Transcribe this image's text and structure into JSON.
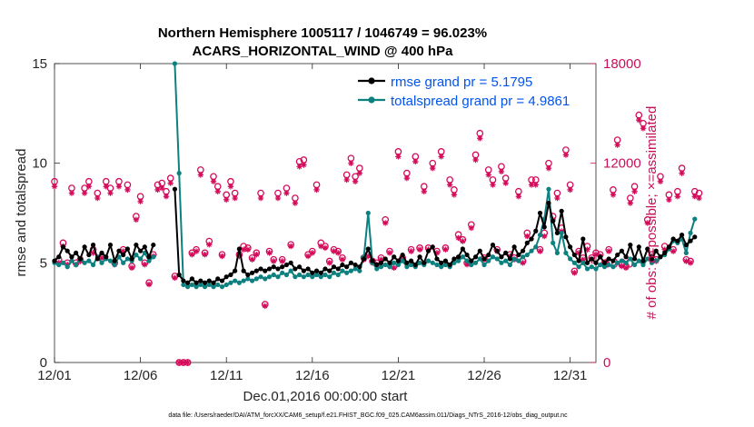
{
  "chart_data": {
    "type": "line",
    "title_line1": "Northern Hemisphere 1005117 / 1046749 = 96.023%",
    "title_line2": "ACARS_HORIZONTAL_WIND @ 400 hPa",
    "xlabel": "Dec.01,2016 00:00:00 start",
    "ylabel_left": "rmse and totalspread",
    "ylabel_right": "# of obs: o=possible; ×=assimilated",
    "footnote": "data file: /Users/raeder/DAI/ATM_forcXX/CAM6_setup/f.e21.FHIST_BGC.f09_025.CAM6assim.011/Diags_NTrS_2016-12/obs_diag_output.nc",
    "xlim": [
      0,
      31.5
    ],
    "ylim_left": [
      0,
      15
    ],
    "ylim_right": [
      0,
      18000
    ],
    "x_ticks": [
      0,
      5,
      10,
      15,
      20,
      25,
      30
    ],
    "x_tick_labels": [
      "12/01",
      "12/06",
      "12/11",
      "12/16",
      "12/21",
      "12/26",
      "12/31"
    ],
    "y_ticks_left": [
      0,
      5,
      10,
      15
    ],
    "y_tick_labels_left": [
      "0",
      "5",
      "10",
      "15"
    ],
    "y_ticks_right": [
      0,
      6000,
      12000,
      18000
    ],
    "y_tick_labels_right": [
      "0",
      "6000",
      "12000",
      "18000"
    ],
    "x_step_days": 0.25,
    "colors": {
      "rmse": "#000000",
      "spread": "#0d8080",
      "obs": "#d40b5a",
      "legend_text": "#0055ee"
    },
    "series": [
      {
        "name": "rmse grand pr = 5.1795",
        "values": [
          5.1,
          5.3,
          5.8,
          5.6,
          5.3,
          5.5,
          5.2,
          5.8,
          5.4,
          5.9,
          5.2,
          5.5,
          5.3,
          5.9,
          5.1,
          5.6,
          5.4,
          5.7,
          5.2,
          5.9,
          5.6,
          5.8,
          5.3,
          5.9,
          null,
          null,
          null,
          null,
          8.7,
          4.4,
          4.1,
          4.0,
          4.2,
          4.0,
          4.1,
          4.0,
          4.1,
          4.0,
          4.2,
          4.1,
          4.3,
          4.4,
          4.6,
          5.7,
          4.6,
          4.4,
          4.5,
          4.6,
          4.7,
          4.6,
          4.7,
          4.8,
          4.7,
          4.8,
          4.9,
          5.0,
          4.7,
          4.8,
          4.6,
          4.7,
          4.5,
          4.6,
          4.5,
          4.7,
          4.6,
          4.8,
          4.7,
          4.9,
          4.8,
          5.0,
          4.9,
          4.8,
          5.2,
          5.7,
          5.1,
          4.9,
          5.0,
          5.2,
          5.0,
          5.3,
          5.1,
          5.4,
          5.0,
          5.1,
          4.9,
          5.3,
          5.0,
          5.6,
          5.8,
          5.2,
          5.0,
          5.1,
          4.9,
          5.2,
          5.3,
          5.7,
          5.4,
          5.1,
          5.3,
          5.6,
          5.2,
          5.4,
          5.9,
          5.6,
          5.3,
          5.5,
          5.2,
          5.8,
          5.4,
          5.6,
          6.0,
          6.2,
          6.6,
          7.5,
          6.8,
          8.0,
          7.1,
          6.5,
          7.6,
          6.3,
          5.8,
          5.4,
          5.1,
          6.2,
          5.0,
          5.2,
          5.0,
          5.3,
          5.0,
          5.2,
          5.1,
          5.4,
          5.6,
          5.3,
          5.9,
          5.2,
          5.8,
          5.1,
          5.7,
          5.2,
          5.6,
          5.3,
          5.5,
          5.8,
          6.2,
          6.1,
          6.4,
          5.9,
          6.1,
          6.3
        ],
        "color": "#000000"
      },
      {
        "name": "totalspread grand pr = 4.9861",
        "values": [
          5.0,
          4.9,
          5.0,
          4.8,
          5.1,
          4.9,
          5.2,
          5.0,
          5.1,
          4.9,
          5.3,
          5.0,
          5.2,
          5.1,
          4.9,
          5.3,
          5.0,
          5.2,
          5.1,
          5.4,
          5.2,
          5.5,
          5.1,
          5.3,
          null,
          null,
          null,
          null,
          15.0,
          9.5,
          3.9,
          3.8,
          3.9,
          3.8,
          3.9,
          3.8,
          3.9,
          3.8,
          3.9,
          3.8,
          3.9,
          4.0,
          4.1,
          4.0,
          4.1,
          4.2,
          4.1,
          4.2,
          4.3,
          4.2,
          4.3,
          4.4,
          4.3,
          4.5,
          4.4,
          4.6,
          4.3,
          4.4,
          4.3,
          4.4,
          4.3,
          4.4,
          4.3,
          4.4,
          4.3,
          4.5,
          4.4,
          4.6,
          4.5,
          4.6,
          4.7,
          4.6,
          5.3,
          7.5,
          5.0,
          4.7,
          4.8,
          4.9,
          4.8,
          5.0,
          4.9,
          5.1,
          4.8,
          4.9,
          4.8,
          5.0,
          4.9,
          5.1,
          5.0,
          4.9,
          4.8,
          4.9,
          4.8,
          5.0,
          5.1,
          5.3,
          5.1,
          4.9,
          5.0,
          5.2,
          4.9,
          5.1,
          5.3,
          5.2,
          5.0,
          5.1,
          4.9,
          5.2,
          5.1,
          5.3,
          5.4,
          5.6,
          5.8,
          6.4,
          7.2,
          8.7,
          6.0,
          5.5,
          6.5,
          5.5,
          5.2,
          5.0,
          4.8,
          5.0,
          4.7,
          4.8,
          4.7,
          4.9,
          4.8,
          4.9,
          4.8,
          5.0,
          5.1,
          5.0,
          5.2,
          4.9,
          5.1,
          4.9,
          5.2,
          5.0,
          5.1,
          5.3,
          5.4,
          5.7,
          6.1,
          6.0,
          6.2,
          5.5,
          6.5,
          7.2
        ],
        "color": "#0d8080"
      },
      {
        "name": "# of obs possible",
        "values": [
          10900,
          6200,
          7200,
          6000,
          10500,
          6000,
          6200,
          10500,
          10900,
          6800,
          10200,
          6400,
          10900,
          10500,
          6000,
          10900,
          6800,
          10700,
          5800,
          8800,
          10000,
          6000,
          4800,
          6500,
          10700,
          10800,
          10300,
          11100,
          5200,
          0,
          0,
          0,
          6600,
          6800,
          11600,
          6600,
          7300,
          11200,
          10600,
          6500,
          10100,
          10900,
          10200,
          6500,
          7000,
          6900,
          6300,
          6600,
          10200,
          3500,
          6700,
          6200,
          10200,
          6200,
          10500,
          7100,
          9900,
          12100,
          12200,
          6500,
          6700,
          10700,
          7200,
          7000,
          6100,
          6800,
          6700,
          6300,
          11300,
          12300,
          11200,
          11700,
          6300,
          6500,
          6100,
          6000,
          6300,
          8600,
          6700,
          5800,
          12700,
          6300,
          11400,
          6800,
          12400,
          6900,
          10600,
          6900,
          12000,
          6700,
          12700,
          6900,
          11000,
          10400,
          7700,
          7400,
          6000,
          8300,
          12500,
          13800,
          6300,
          11600,
          11000,
          6800,
          11800,
          11100,
          6500,
          6300,
          10300,
          6100,
          7800,
          11000,
          11000,
          6800,
          7800,
          12000,
          8800,
          10200,
          8100,
          12800,
          10700,
          5500,
          6700,
          6300,
          7000,
          6300,
          6600,
          6500,
          6000,
          6800,
          10400,
          13400,
          5900,
          5800,
          9900,
          10600,
          14900,
          14400,
          8600,
          6500,
          6200,
          11200,
          7000,
          10100,
          6800,
          10300,
          11700,
          6200,
          6100,
          10300,
          10200
        ],
        "color": "#d40b5a"
      },
      {
        "name": "# of obs assimilated",
        "values": [
          10600,
          6000,
          7000,
          5900,
          10200,
          5900,
          6100,
          10200,
          10600,
          6600,
          9900,
          6300,
          10600,
          10200,
          5900,
          10600,
          6700,
          10400,
          5700,
          8600,
          9700,
          5900,
          4700,
          6400,
          10400,
          10500,
          10000,
          10800,
          5100,
          0,
          0,
          0,
          6500,
          6700,
          11300,
          6500,
          7100,
          10900,
          10300,
          6400,
          9800,
          10600,
          9900,
          6400,
          6800,
          6800,
          6200,
          6500,
          9900,
          3400,
          6600,
          6100,
          9900,
          6100,
          10200,
          7000,
          9600,
          11800,
          11900,
          6400,
          6600,
          10400,
          7000,
          6900,
          6000,
          6700,
          6600,
          6200,
          11000,
          12000,
          10900,
          11400,
          6200,
          6400,
          6000,
          5900,
          6200,
          8400,
          6600,
          5700,
          12400,
          6200,
          11100,
          6700,
          12100,
          6800,
          10300,
          6800,
          11700,
          6600,
          12400,
          6800,
          10700,
          10100,
          7500,
          7300,
          5900,
          8100,
          12200,
          13500,
          6200,
          11300,
          10700,
          6700,
          11500,
          10800,
          6400,
          6200,
          10000,
          6000,
          7600,
          10700,
          10700,
          6700,
          7600,
          11700,
          8600,
          9900,
          7900,
          12500,
          10400,
          5400,
          6600,
          6200,
          6800,
          6200,
          6500,
          6400,
          5900,
          6700,
          10100,
          13100,
          5800,
          5700,
          9600,
          10300,
          14600,
          14100,
          8400,
          6400,
          6100,
          10900,
          6800,
          9800,
          6700,
          10000,
          11400,
          6100,
          6000,
          10000,
          9900
        ],
        "color": "#d40b5a"
      }
    ]
  }
}
